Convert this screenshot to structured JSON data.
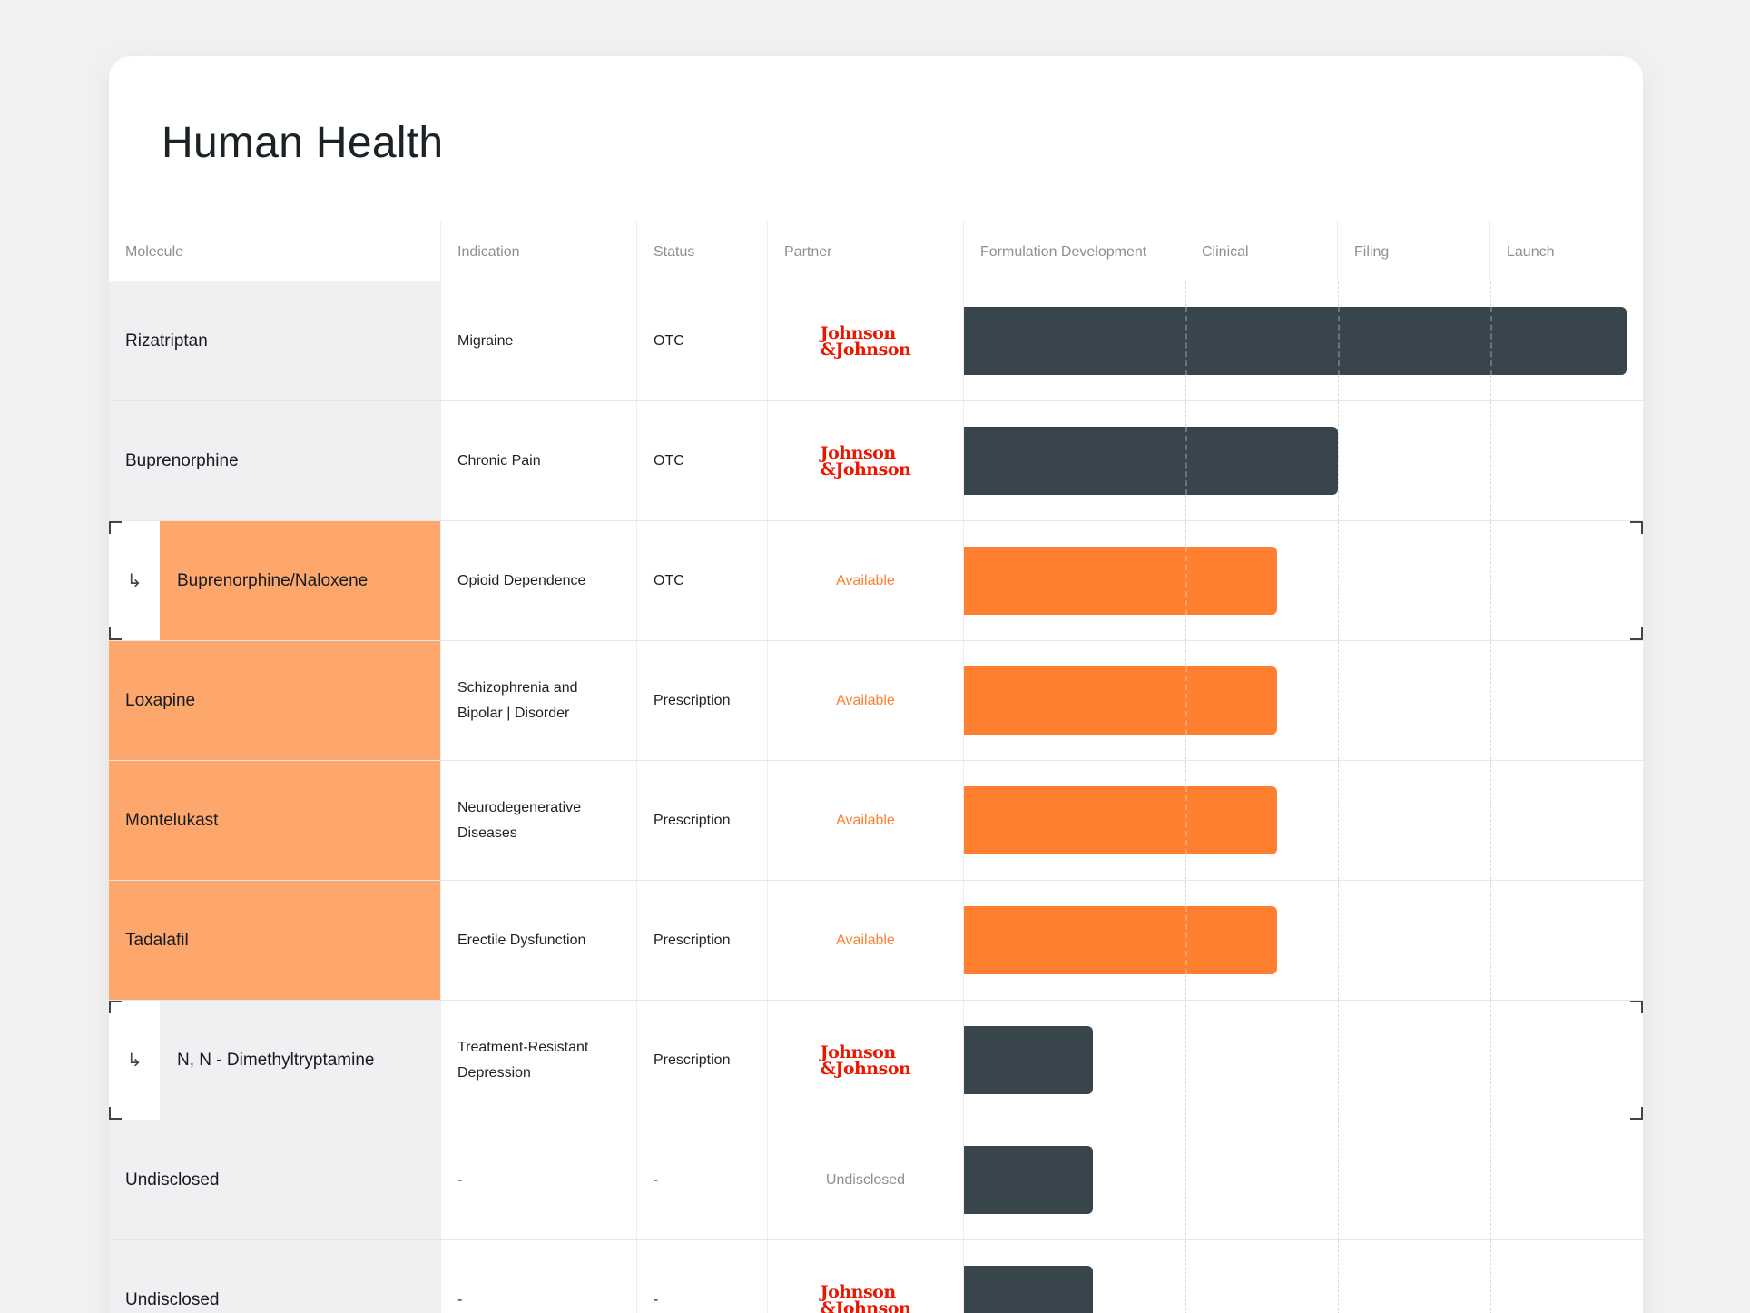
{
  "title": "Human Health",
  "columns": {
    "molecule": "Molecule",
    "indication": "Indication",
    "status": "Status",
    "partner": "Partner",
    "stages": [
      "Formulation Development",
      "Clinical",
      "Filing",
      "Launch"
    ]
  },
  "partner_logo_lines": [
    "Johnson",
    "&Johnson"
  ],
  "rows": [
    {
      "molecule": "Rizatriptan",
      "indication": "Migraine",
      "status": "OTC",
      "partner": "Johnson & Johnson",
      "partner_kind": "logo",
      "progress_stage": 4,
      "bar_color": "dark",
      "style": "grey"
    },
    {
      "molecule": "Buprenorphine",
      "indication": "Chronic Pain",
      "status": "OTC",
      "partner": "Johnson & Johnson",
      "partner_kind": "logo",
      "progress_stage": 2,
      "bar_color": "dark",
      "style": "grey"
    },
    {
      "molecule": "Buprenorphine/Naloxene",
      "indication": "Opioid Dependence",
      "status": "OTC",
      "partner": "Available",
      "partner_kind": "available",
      "progress_stage": 1.6,
      "bar_color": "orange",
      "style": "orange-sub"
    },
    {
      "molecule": "Loxapine",
      "indication": "Schizophrenia and Bipolar | Disorder",
      "status": "Prescription",
      "partner": "Available",
      "partner_kind": "available",
      "progress_stage": 1.6,
      "bar_color": "orange",
      "style": "orange"
    },
    {
      "molecule": "Montelukast",
      "indication": "Neurodegenerative Diseases",
      "status": "Prescription",
      "partner": "Available",
      "partner_kind": "available",
      "progress_stage": 1.6,
      "bar_color": "orange",
      "style": "orange"
    },
    {
      "molecule": "Tadalafil",
      "indication": "Erectile Dysfunction",
      "status": "Prescription",
      "partner": "Available",
      "partner_kind": "available",
      "progress_stage": 1.6,
      "bar_color": "orange",
      "style": "orange"
    },
    {
      "molecule": "N, N - Dimethyltryptamine",
      "indication": "Treatment-Resistant Depression",
      "status": "Prescription",
      "partner": "Johnson & Johnson",
      "partner_kind": "logo",
      "progress_stage": 0.58,
      "bar_color": "dark",
      "style": "grey-sub"
    },
    {
      "molecule": "Undisclosed",
      "indication": "-",
      "status": "-",
      "partner": "Undisclosed",
      "partner_kind": "undisclosed",
      "progress_stage": 0.58,
      "bar_color": "dark",
      "style": "grey"
    },
    {
      "molecule": "Undisclosed",
      "indication": "-",
      "status": "-",
      "partner": "Johnson & Johnson",
      "partner_kind": "logo",
      "progress_stage": 0.58,
      "bar_color": "dark",
      "style": "grey"
    }
  ],
  "colors": {
    "dark_bar": "#38454c",
    "orange_bar": "#ff7f31",
    "orange_cell": "#fea76c",
    "available_text": "#ff7f31",
    "jj_red": "#eb1700"
  },
  "icons": {
    "sub_row": "subdirectory-arrow-icon"
  }
}
